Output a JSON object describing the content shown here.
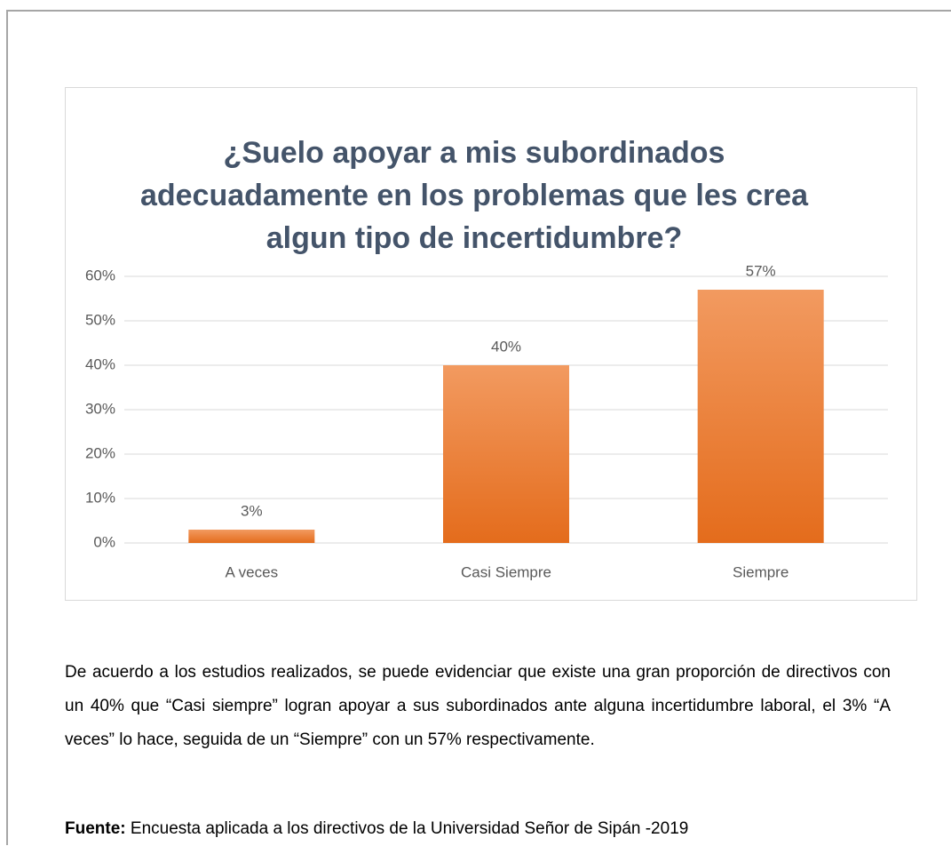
{
  "chart_data": {
    "type": "bar",
    "title": "¿Suelo apoyar a mis subordinados adecuadamente en los problemas que les crea algun tipo de incertidumbre?",
    "categories": [
      "A veces",
      "Casi Siempre",
      "Siempre"
    ],
    "values": [
      3,
      40,
      57
    ],
    "value_labels": [
      "3%",
      "40%",
      "57%"
    ],
    "color": "#ed7d31",
    "ylim": [
      0,
      60
    ],
    "yticks": [
      {
        "value": 0,
        "label": "0%"
      },
      {
        "value": 10,
        "label": "10%"
      },
      {
        "value": 20,
        "label": "20%"
      },
      {
        "value": 30,
        "label": "30%"
      },
      {
        "value": 40,
        "label": "40%"
      },
      {
        "value": 50,
        "label": "50%"
      },
      {
        "value": 60,
        "label": "60%"
      }
    ],
    "grid": true
  },
  "paragraph": "De acuerdo a los estudios realizados, se puede evidenciar que existe una gran proporción de directivos con un 40% que “Casi siempre” logran apoyar a sus subordinados ante alguna incertidumbre laboral, el 3% “A veces” lo hace, seguida de un “Siempre” con un 57% respectivamente.",
  "source": {
    "label": "Fuente:",
    "text": "Encuesta aplicada a los directivos de la Universidad Señor de Sipán -2019"
  }
}
